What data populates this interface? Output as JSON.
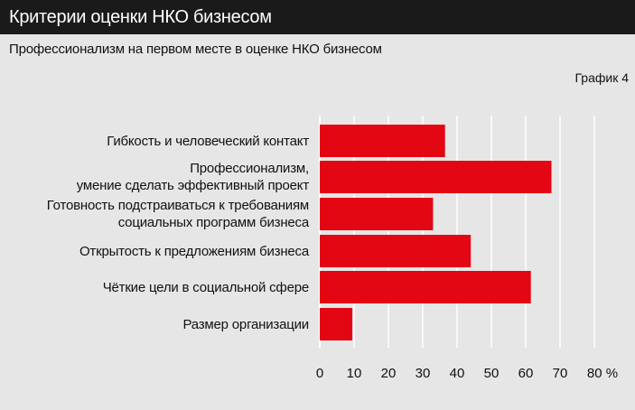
{
  "header": {
    "title": "Критерии оценки НКО бизнесом"
  },
  "subtitle": "Профессионализм на первом месте в оценке НКО бизнесом",
  "graph_label": "График 4",
  "colors": {
    "bar": "#e30613",
    "header_bg": "#1a1a1a",
    "background": "#e6e6e6",
    "grid": "#ffffff"
  },
  "chart_data": {
    "type": "bar",
    "orientation": "horizontal",
    "categories": [
      "Гибкость и человеческий контакт",
      "Профессионализм,\nумение сделать эффективный проект",
      "Готовность подстраиваться к требованиям\nсоциальных программ бизнеса",
      "Открытость к предложениям бизнеса",
      "Чёткие цели в социальной сфере",
      "Размер организации"
    ],
    "values": [
      36.5,
      67.5,
      33,
      44,
      61.5,
      9.5
    ],
    "xlim": [
      0,
      80
    ],
    "x_ticks": [
      "0",
      "10",
      "20",
      "30",
      "40",
      "50",
      "60",
      "70",
      "80 %"
    ],
    "grid": true,
    "legend": "none"
  }
}
